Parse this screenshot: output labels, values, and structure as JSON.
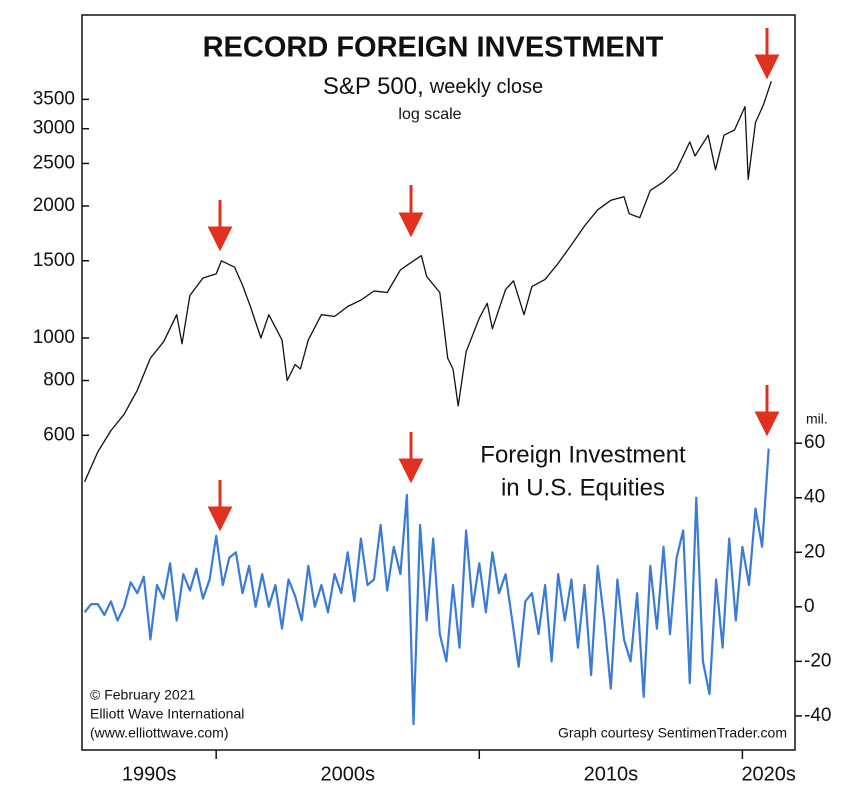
{
  "chart_data": {
    "type": "line",
    "title": "RECORD FOREIGN INVESTMENT",
    "subtitle_main": "S&P 500,",
    "subtitle_sub": "weekly close",
    "scale_note": "log scale",
    "series_label": [
      "Foreign Investment",
      "in U.S. Equities"
    ],
    "y2_unit": "mil.",
    "credits": [
      "© February 2021",
      "Elliott Wave International",
      "(www.elliottwave.com)"
    ],
    "source": "Graph courtesy SentimenTrader.com",
    "decade_labels": [
      "1990s",
      "2000s",
      "2010s",
      "2020s"
    ],
    "xlim": [
      1994.9,
      2022.0
    ],
    "xticks": [
      2000,
      2010,
      2020
    ],
    "yscale": "log",
    "ylim": [
      115,
      5450
    ],
    "yticks": [
      600,
      800,
      1000,
      1500,
      2000,
      2500,
      3000,
      3500
    ],
    "y2lim": [
      -52.5,
      217
    ],
    "y2ticks": [
      -40,
      -20,
      0,
      20,
      40,
      60
    ],
    "series": [
      {
        "name": "S&P 500",
        "color": "#111111",
        "axis": "y",
        "x": [
          1995.0,
          1995.5,
          1996.0,
          1996.5,
          1997.0,
          1997.5,
          1998.0,
          1998.5,
          1998.7,
          1999.0,
          1999.5,
          2000.0,
          2000.2,
          2000.7,
          2001.0,
          2001.3,
          2001.7,
          2002.0,
          2002.5,
          2002.7,
          2003.0,
          2003.2,
          2003.5,
          2004.0,
          2004.5,
          2005.0,
          2005.5,
          2006.0,
          2006.5,
          2007.0,
          2007.5,
          2007.8,
          2008.0,
          2008.5,
          2008.8,
          2009.0,
          2009.2,
          2009.5,
          2010.0,
          2010.3,
          2010.5,
          2011.0,
          2011.3,
          2011.7,
          2012.0,
          2012.5,
          2013.0,
          2013.5,
          2014.0,
          2014.5,
          2015.0,
          2015.5,
          2015.7,
          2016.1,
          2016.5,
          2017.0,
          2017.5,
          2018.0,
          2018.2,
          2018.7,
          2018.98,
          2019.3,
          2019.7,
          2020.1,
          2020.22,
          2020.5,
          2020.8,
          2021.1
        ],
        "values": [
          470,
          550,
          615,
          670,
          760,
          900,
          980,
          1130,
          970,
          1250,
          1370,
          1400,
          1500,
          1450,
          1320,
          1180,
          1000,
          1130,
          990,
          800,
          870,
          850,
          990,
          1130,
          1120,
          1180,
          1220,
          1280,
          1270,
          1430,
          1500,
          1540,
          1380,
          1270,
          900,
          850,
          700,
          930,
          1110,
          1200,
          1050,
          1290,
          1350,
          1130,
          1310,
          1360,
          1480,
          1630,
          1800,
          1960,
          2060,
          2100,
          1920,
          1880,
          2170,
          2270,
          2420,
          2800,
          2600,
          2900,
          2420,
          2900,
          2980,
          3370,
          2300,
          3100,
          3400,
          3850
        ]
      },
      {
        "name": "Foreign Investment in U.S. Equities",
        "color": "#3a7bd5",
        "axis": "y2",
        "x": [
          1995.0,
          1995.25,
          1995.5,
          1995.75,
          1996.0,
          1996.25,
          1996.5,
          1996.75,
          1997.0,
          1997.25,
          1997.5,
          1997.75,
          1998.0,
          1998.25,
          1998.5,
          1998.75,
          1999.0,
          1999.25,
          1999.5,
          1999.75,
          2000.0,
          2000.25,
          2000.5,
          2000.75,
          2001.0,
          2001.25,
          2001.5,
          2001.75,
          2002.0,
          2002.25,
          2002.5,
          2002.75,
          2003.0,
          2003.25,
          2003.5,
          2003.75,
          2004.0,
          2004.25,
          2004.5,
          2004.75,
          2005.0,
          2005.25,
          2005.5,
          2005.75,
          2006.0,
          2006.25,
          2006.5,
          2006.75,
          2007.0,
          2007.25,
          2007.5,
          2007.75,
          2008.0,
          2008.25,
          2008.5,
          2008.75,
          2009.0,
          2009.25,
          2009.5,
          2009.75,
          2010.0,
          2010.25,
          2010.5,
          2010.75,
          2011.0,
          2011.25,
          2011.5,
          2011.75,
          2012.0,
          2012.25,
          2012.5,
          2012.75,
          2013.0,
          2013.25,
          2013.5,
          2013.75,
          2014.0,
          2014.25,
          2014.5,
          2014.75,
          2015.0,
          2015.25,
          2015.5,
          2015.75,
          2016.0,
          2016.25,
          2016.5,
          2016.75,
          2017.0,
          2017.25,
          2017.5,
          2017.75,
          2018.0,
          2018.25,
          2018.5,
          2018.75,
          2019.0,
          2019.25,
          2019.5,
          2019.75,
          2020.0,
          2020.25,
          2020.5,
          2020.75,
          2021.0
        ],
        "values": [
          -2,
          1,
          1,
          -3,
          2,
          -5,
          0,
          9,
          5,
          11,
          -12,
          8,
          3,
          16,
          -5,
          12,
          6,
          14,
          3,
          10,
          26,
          8,
          18,
          20,
          5,
          15,
          0,
          12,
          0,
          8,
          -8,
          10,
          4,
          -5,
          15,
          0,
          8,
          -2,
          12,
          5,
          20,
          2,
          25,
          8,
          10,
          30,
          6,
          22,
          12,
          41,
          -43,
          30,
          -5,
          25,
          -10,
          -20,
          8,
          -15,
          28,
          0,
          16,
          -2,
          20,
          5,
          12,
          -5,
          -22,
          2,
          5,
          -10,
          8,
          -20,
          12,
          -5,
          10,
          -15,
          8,
          -25,
          15,
          -5,
          -30,
          10,
          -12,
          -20,
          5,
          -33,
          15,
          -8,
          22,
          -10,
          18,
          28,
          -28,
          40,
          -20,
          -32,
          10,
          -15,
          25,
          -5,
          22,
          8,
          36,
          22,
          58
        ]
      }
    ]
  }
}
